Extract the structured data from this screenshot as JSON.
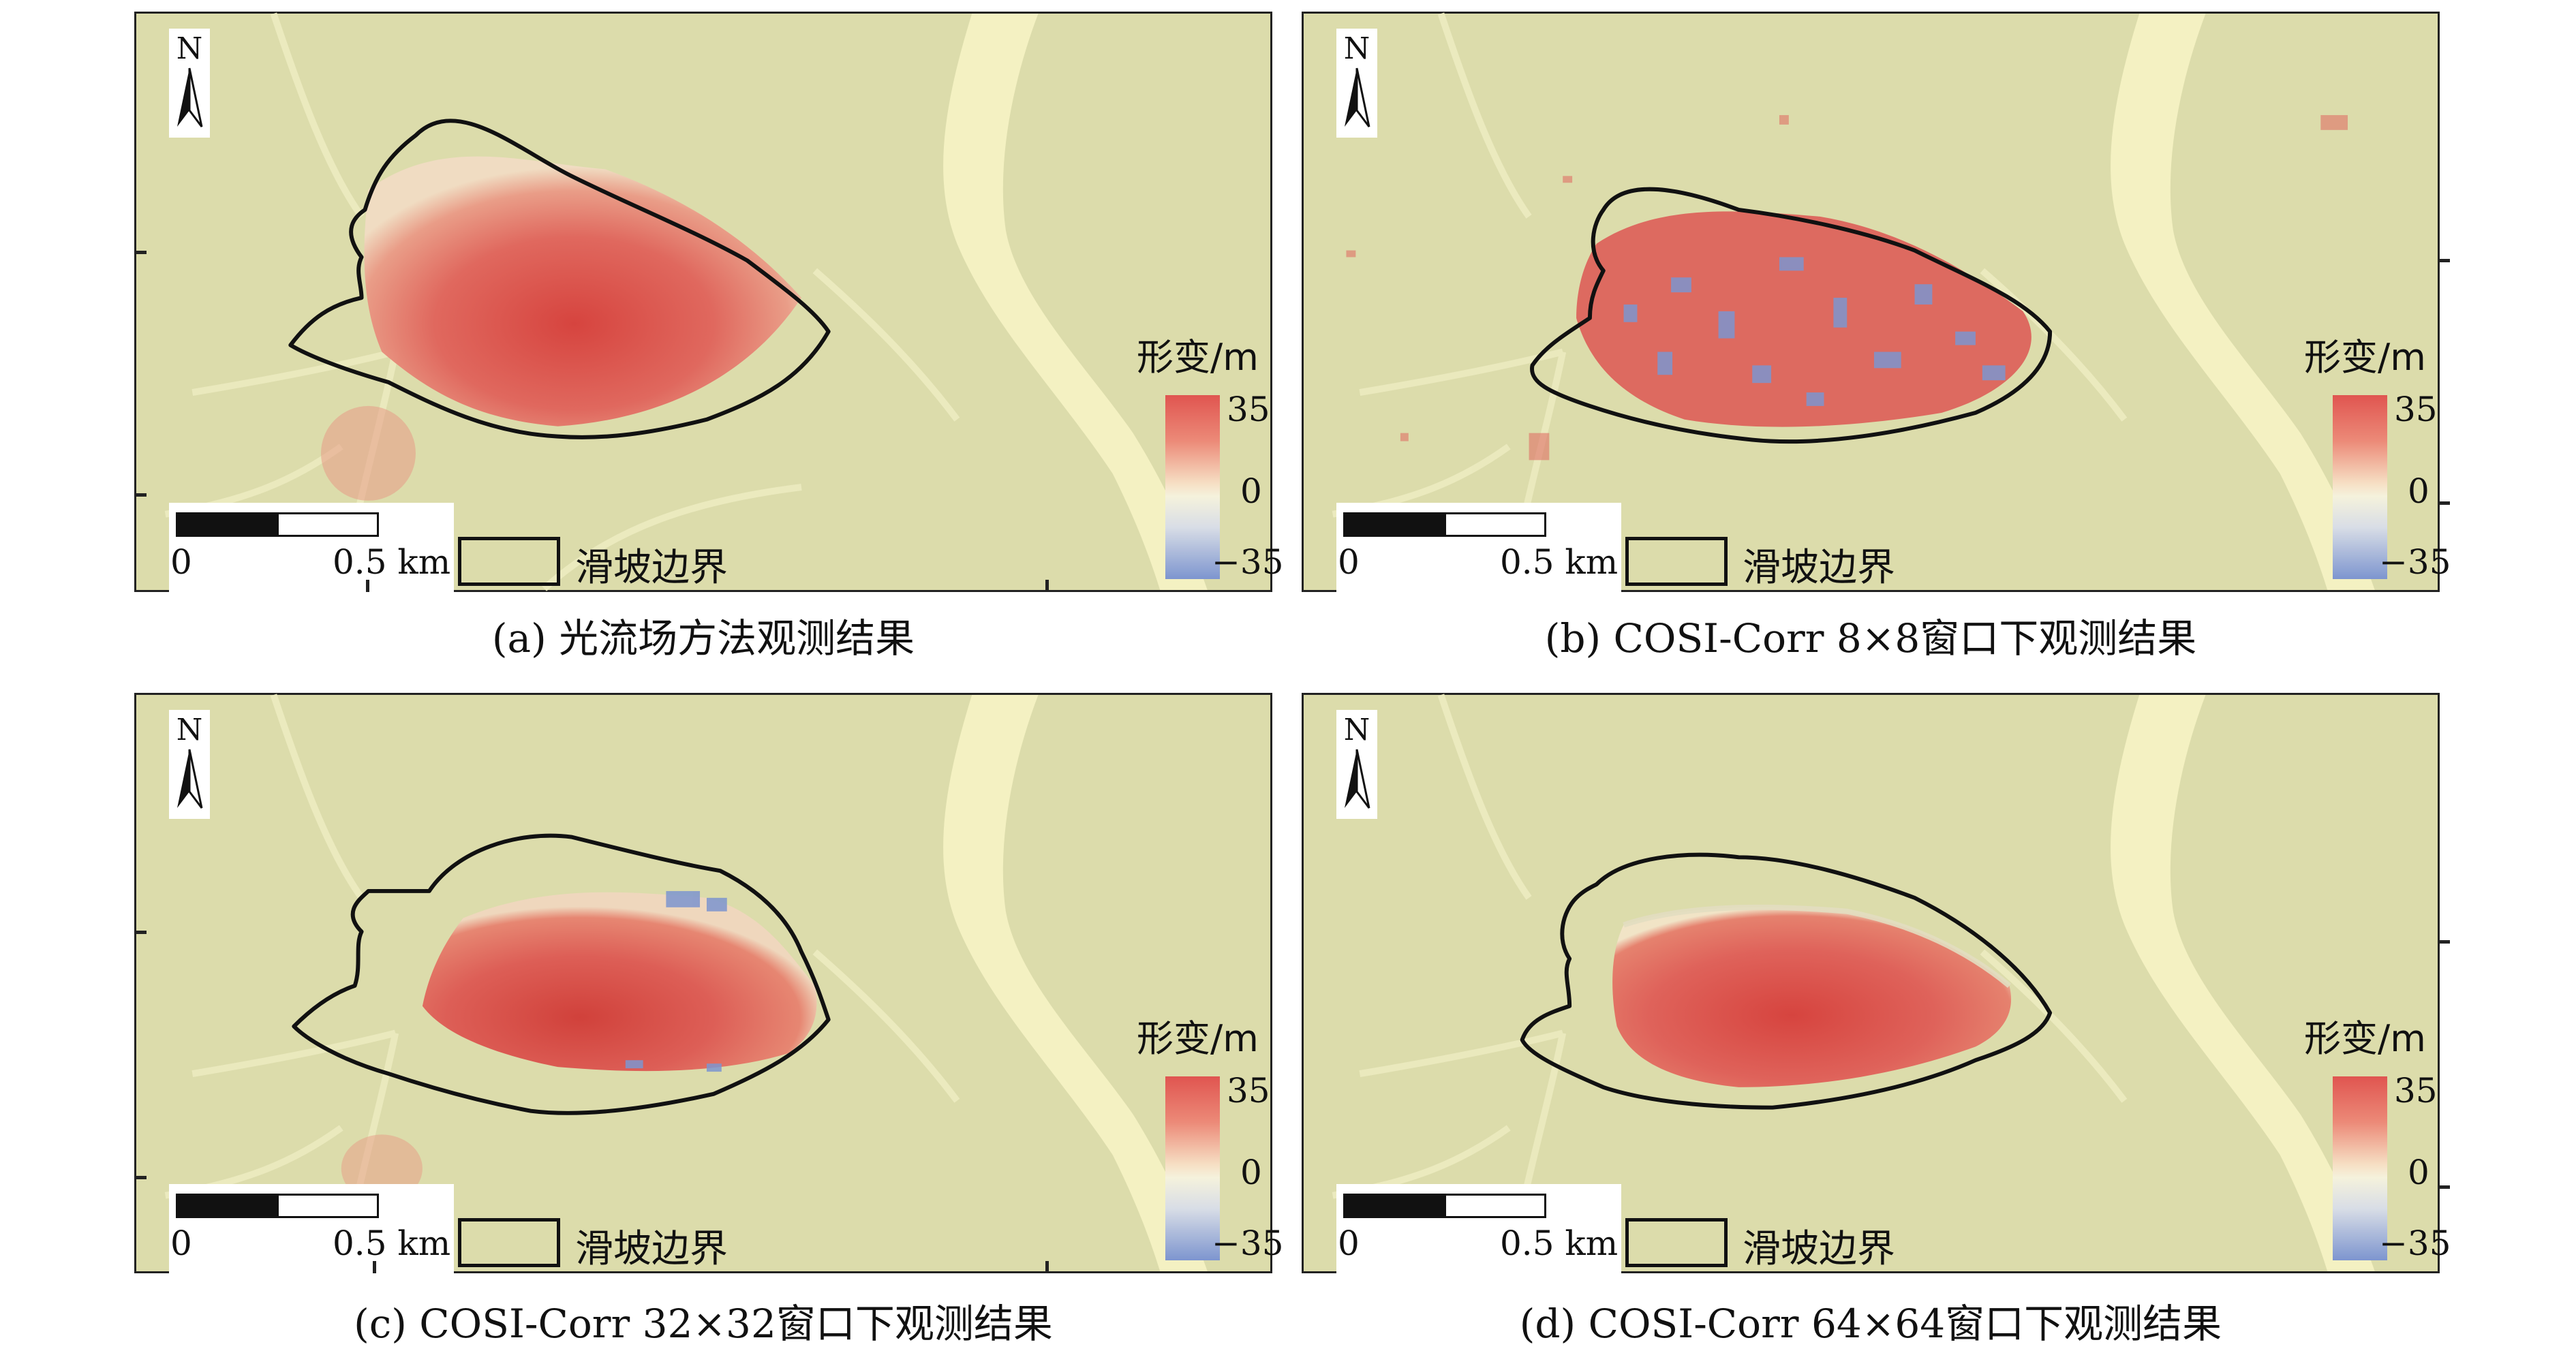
{
  "panels": [
    {
      "id": "a",
      "caption": "(a) 光流场方法观测结果"
    },
    {
      "id": "b",
      "caption": "(b) COSI-Corr 8×8窗口下观测结果"
    },
    {
      "id": "c",
      "caption": "(c) COSI-Corr 32×32窗口下观测结果"
    },
    {
      "id": "d",
      "caption": "(d) COSI-Corr 64×64窗口下观测结果"
    }
  ],
  "north_arrow": {
    "label": "N"
  },
  "scale_bar": {
    "start_label": "0",
    "end_label": "0.5 km"
  },
  "boundary_legend": {
    "label": "滑坡边界"
  },
  "colorbar": {
    "title": "形变/m",
    "max_label": "35",
    "mid_label": "0",
    "min_label": "−35"
  },
  "colors": {
    "background": "#dcdcab",
    "river": "#f4f1c2",
    "deformation_high": "#d9443f",
    "deformation_mid": "#ec8a78",
    "deformation_zero": "#f5f2dc",
    "deformation_low": "#7d95cf",
    "boundary_line": "#111111"
  }
}
